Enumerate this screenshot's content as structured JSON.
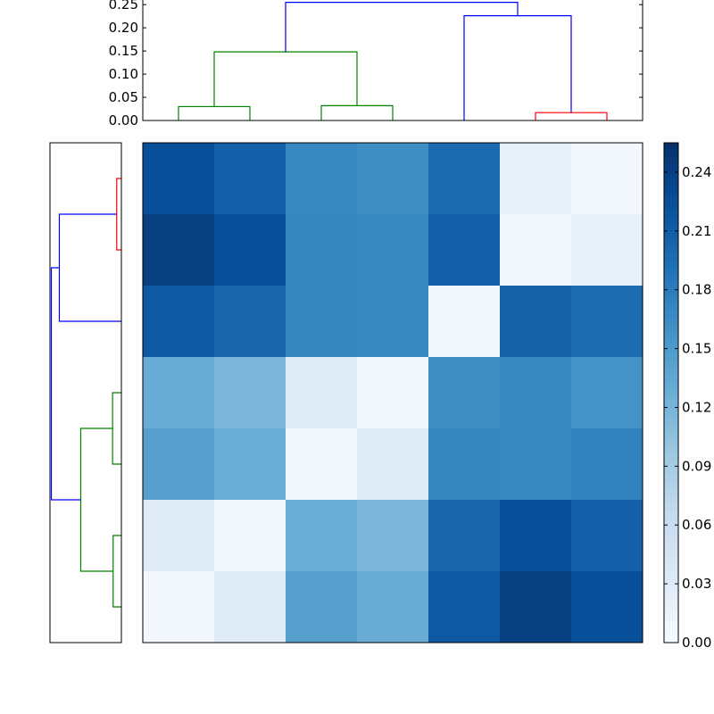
{
  "chart_data": {
    "type": "heatmap",
    "title": "",
    "xlabel": "",
    "ylabel": "",
    "matrix": [
      [
        0.225,
        0.207,
        0.17,
        0.163,
        0.197,
        0.02,
        0.005
      ],
      [
        0.24,
        0.225,
        0.172,
        0.17,
        0.208,
        0.005,
        0.02
      ],
      [
        0.215,
        0.203,
        0.172,
        0.168,
        0.005,
        0.206,
        0.196
      ],
      [
        0.13,
        0.116,
        0.03,
        0.005,
        0.163,
        0.17,
        0.158
      ],
      [
        0.143,
        0.128,
        0.005,
        0.03,
        0.172,
        0.17,
        0.175
      ],
      [
        0.03,
        0.005,
        0.128,
        0.116,
        0.203,
        0.225,
        0.207
      ],
      [
        0.005,
        0.03,
        0.143,
        0.13,
        0.215,
        0.24,
        0.225
      ]
    ],
    "colorbar": {
      "colormap": "Blues",
      "min": 0.0,
      "max": 0.255,
      "ticks": [
        0.0,
        0.03,
        0.06,
        0.09,
        0.12,
        0.15,
        0.18,
        0.21,
        0.24
      ],
      "tick_labels": [
        "0.00",
        "0.03",
        "0.06",
        "0.09",
        "0.12",
        "0.15",
        "0.18",
        "0.21",
        "0.24"
      ]
    },
    "top_dendrogram": {
      "ylim": [
        0,
        0.26
      ],
      "yticks": [
        0.0,
        0.05,
        0.1,
        0.15,
        0.2,
        0.25
      ],
      "ytick_labels": [
        "0.00",
        "0.05",
        "0.10",
        "0.15",
        "0.20",
        "0.25"
      ],
      "links": [
        {
          "x": [
            0.5,
            0.5,
            1.5,
            1.5
          ],
          "y": [
            0,
            0.03,
            0.03,
            0
          ],
          "color": "#008000"
        },
        {
          "x": [
            2.5,
            2.5,
            3.5,
            3.5
          ],
          "y": [
            0,
            0.032,
            0.032,
            0
          ],
          "color": "#008000"
        },
        {
          "x": [
            1.0,
            1.0,
            3.0,
            3.0
          ],
          "y": [
            0.03,
            0.148,
            0.148,
            0.032
          ],
          "color": "#008000"
        },
        {
          "x": [
            5.5,
            5.5,
            6.5,
            6.5
          ],
          "y": [
            0,
            0.017,
            0.017,
            0
          ],
          "color": "#ff0000"
        },
        {
          "x": [
            4.5,
            4.5,
            6.0,
            6.0
          ],
          "y": [
            0,
            0.226,
            0.226,
            0.017
          ],
          "color": "#0000ff"
        },
        {
          "x": [
            2.0,
            2.0,
            5.25,
            5.25
          ],
          "y": [
            0.148,
            0.255,
            0.255,
            0.226
          ],
          "color": "#0000ff"
        }
      ]
    },
    "left_dendrogram": {
      "xlim": [
        0,
        0.26
      ],
      "links": [
        {
          "y": [
            0.5,
            0.5,
            1.5,
            1.5
          ],
          "x": [
            0,
            0.017,
            0.017,
            0
          ],
          "color": "#ff0000"
        },
        {
          "y": [
            1.0,
            1.0,
            2.5,
            2.5
          ],
          "x": [
            0.017,
            0.226,
            0.226,
            0
          ],
          "color": "#0000ff"
        },
        {
          "y": [
            3.5,
            3.5,
            4.5,
            4.5
          ],
          "x": [
            0,
            0.032,
            0.032,
            0
          ],
          "color": "#008000"
        },
        {
          "y": [
            5.5,
            5.5,
            6.5,
            6.5
          ],
          "x": [
            0,
            0.03,
            0.03,
            0
          ],
          "color": "#008000"
        },
        {
          "y": [
            4.0,
            4.0,
            6.0,
            6.0
          ],
          "x": [
            0.032,
            0.148,
            0.148,
            0.03
          ],
          "color": "#008000"
        },
        {
          "y": [
            1.75,
            1.75,
            5.0,
            5.0
          ],
          "x": [
            0.226,
            0.255,
            0.255,
            0.148
          ],
          "color": "#0000ff"
        }
      ]
    }
  }
}
